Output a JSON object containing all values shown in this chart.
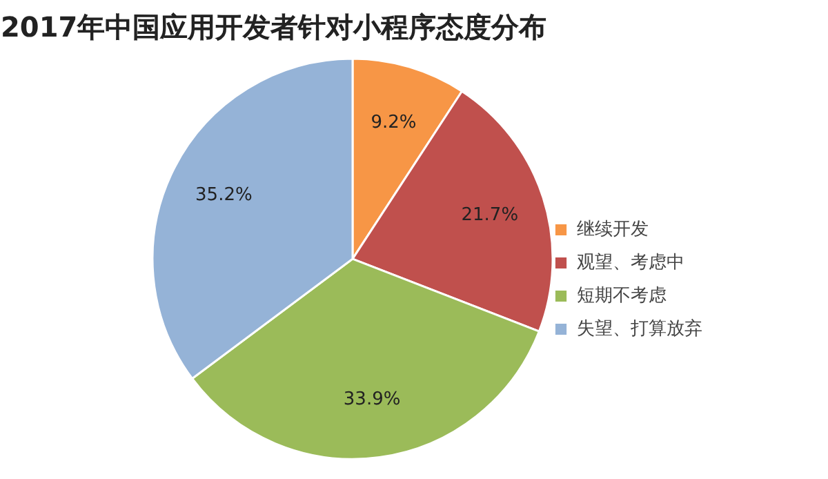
{
  "chart_data": {
    "type": "pie",
    "title": "2017年中国应用开发者针对小程序态度分布",
    "categories": [
      "继续开发",
      "观望、考虑中",
      "短期不考虑",
      "失望、打算放弃"
    ],
    "values": [
      9.2,
      21.7,
      33.9,
      35.2
    ],
    "colors": [
      "#f79646",
      "#c0504d",
      "#9bbb59",
      "#95b3d7"
    ],
    "value_labels": [
      "9.2%",
      "21.7%",
      "33.9%",
      "35.2%"
    ],
    "legend": "right"
  }
}
